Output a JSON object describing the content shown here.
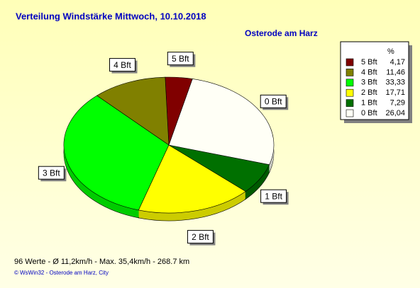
{
  "chart_data": {
    "type": "pie",
    "title": "Verteilung Windstärke  Mittwoch, 10.10.2018",
    "subtitle": "Osterode am Harz",
    "legend_header": "%",
    "categories": [
      "5 Bft",
      "4 Bft",
      "3 Bft",
      "2 Bft",
      "1 Bft",
      "0 Bft"
    ],
    "values": [
      4.17,
      11.46,
      33.33,
      17.71,
      7.29,
      26.04
    ],
    "value_labels": [
      "4,17",
      "11,46",
      "33,33",
      "17,71",
      "7,29",
      "26,04"
    ],
    "colors": [
      "#800000",
      "#808000",
      "#00ff00",
      "#ffff00",
      "#007000",
      "#fffff6"
    ],
    "footer": "96 Werte   -   Ø 11,2km/h  -  Max. 35,4km/h   -   268.7 km",
    "credit": "© WsWin32  -  Osterode am Harz, City"
  }
}
